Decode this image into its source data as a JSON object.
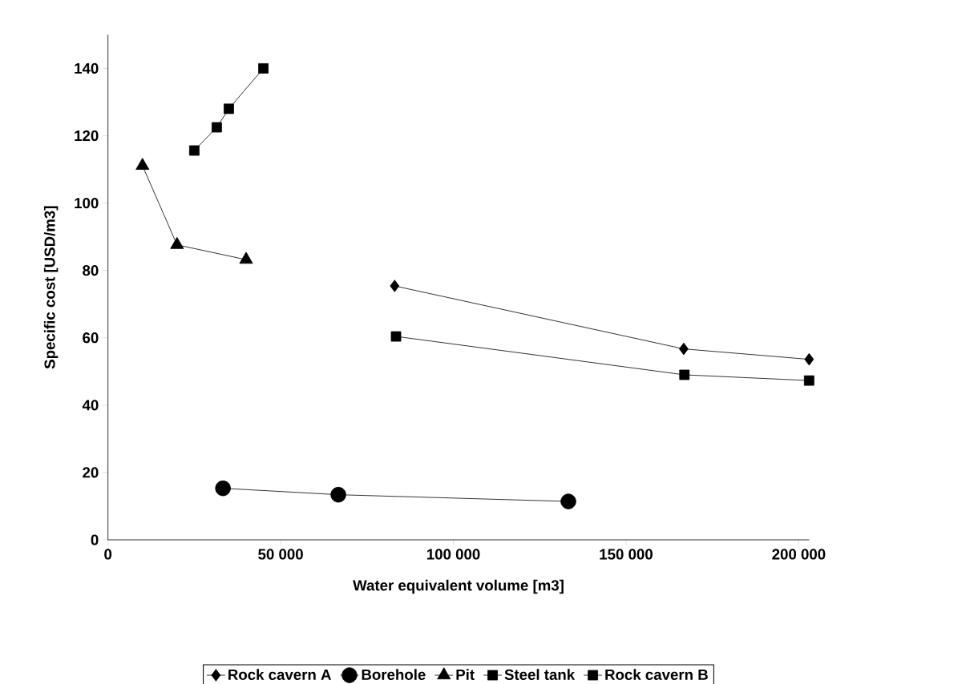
{
  "chart_data": {
    "type": "line",
    "xlabel": "Water equivalent volume [m3]",
    "ylabel": "Specific cost [USD/m3]",
    "xlim": [
      0,
      203000
    ],
    "ylim": [
      0,
      150
    ],
    "xticks": [
      0,
      {
        "value": 50000,
        "label": "50 000"
      },
      {
        "value": 100000,
        "label": "100 000"
      },
      {
        "value": 150000,
        "label": "150 000"
      },
      {
        "value": 200000,
        "label": "200 000"
      }
    ],
    "yticks": [
      0,
      20,
      40,
      60,
      80,
      100,
      120,
      140
    ],
    "legend": "bottom",
    "line_style": "solid",
    "series": [
      {
        "name": "Rock cavern A",
        "color": "#000000",
        "marker": "diamond",
        "x": [
          83000,
          166700,
          203000
        ],
        "values": [
          75.4,
          56.7,
          53.6
        ]
      },
      {
        "name": "Borehole",
        "color": "#000000",
        "marker": "circle",
        "x": [
          33300,
          66700,
          133300
        ],
        "values": [
          15.3,
          13.4,
          11.4
        ]
      },
      {
        "name": "Pit",
        "color": "#000000",
        "marker": "triangle",
        "x": [
          10000,
          20000,
          40000
        ],
        "values": [
          111.1,
          87.6,
          83.2
        ]
      },
      {
        "name": "Steel tank",
        "color": "#000000",
        "marker": "square",
        "x": [
          25000,
          31500,
          35000,
          45000
        ],
        "values": [
          115.6,
          122.5,
          128,
          140
        ]
      },
      {
        "name": "Rock cavern B",
        "color": "#000000",
        "marker": "square",
        "x": [
          83400,
          166900,
          203000
        ],
        "values": [
          60.4,
          49.0,
          47.3
        ]
      }
    ]
  }
}
